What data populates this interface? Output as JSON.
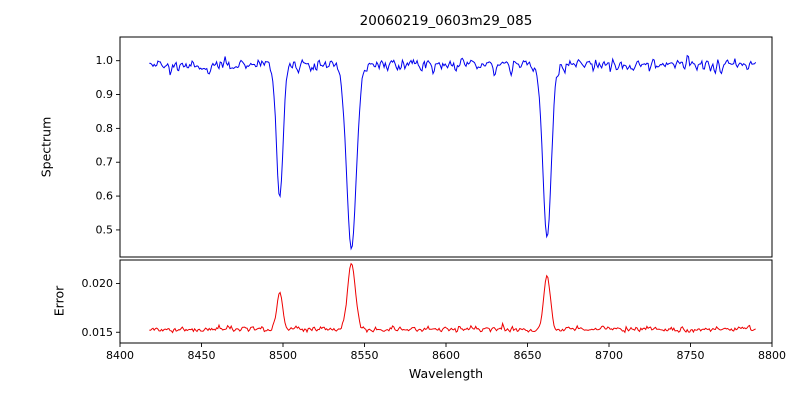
{
  "chart_data": {
    "type": "line",
    "title": "20060219_0603m29_085",
    "xlabel": "Wavelength",
    "xlim": [
      8400,
      8800
    ],
    "xticks": [
      8400,
      8450,
      8500,
      8550,
      8600,
      8650,
      8700,
      8750,
      8800
    ],
    "x_data_range": [
      8418,
      8790
    ],
    "grid": false,
    "legend": "none",
    "panels": [
      {
        "name": "spectrum",
        "ylabel": "Spectrum",
        "color": "#0000ee",
        "ylim": [
          0.42,
          1.07
        ],
        "yticks": [
          0.5,
          0.6,
          0.7,
          0.8,
          0.9,
          1.0
        ],
        "ytick_labels": [
          "0.5",
          "0.6",
          "0.7",
          "0.8",
          "0.9",
          "1.0"
        ],
        "baseline": 1.0,
        "noise_band": [
          0.93,
          1.03
        ],
        "absorption_lines": [
          {
            "center": 8498,
            "depth": 0.4,
            "width": 2.0
          },
          {
            "center": 8542,
            "depth": 0.55,
            "width": 3.0
          },
          {
            "center": 8662,
            "depth": 0.52,
            "width": 2.6
          }
        ]
      },
      {
        "name": "error",
        "ylabel": "Error",
        "color": "#ee0000",
        "ylim": [
          0.0139,
          0.0224
        ],
        "yticks": [
          0.015,
          0.02
        ],
        "ytick_labels": [
          "0.015",
          "0.020"
        ],
        "baseline": 0.0152,
        "noise_band": [
          0.0149,
          0.0158
        ],
        "peaks": [
          {
            "center": 8498,
            "height": 0.0038,
            "width": 1.8
          },
          {
            "center": 8542,
            "height": 0.0068,
            "width": 2.4
          },
          {
            "center": 8662,
            "height": 0.0056,
            "width": 2.0
          }
        ]
      }
    ]
  }
}
